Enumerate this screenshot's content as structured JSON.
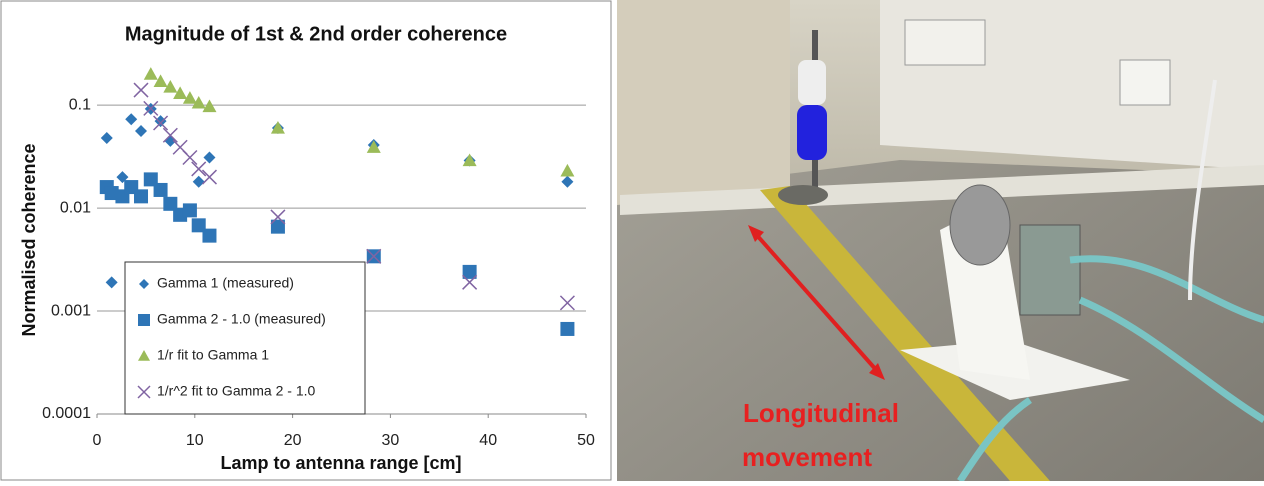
{
  "chart_data": {
    "type": "scatter",
    "title": "Magnitude of 1st & 2nd order coherence",
    "x_label": "Lamp to antenna range [cm]",
    "y_label": "Normalised coherence",
    "xlim": [
      0,
      50
    ],
    "xticks": [
      0,
      10,
      20,
      30,
      40,
      50
    ],
    "ylim": [
      0.0001,
      0.3
    ],
    "yticks": [
      0.0001,
      0.001,
      0.01,
      0.1
    ],
    "y_scale": "log",
    "grid": true,
    "legend": "lower left",
    "series": [
      {
        "name": "Gamma 1 (measured)",
        "color": "#2e75b6",
        "marker": "diamond",
        "x": [
          1.0,
          1.5,
          2.6,
          3.5,
          4.5,
          5.5,
          6.5,
          7.5,
          10.4,
          11.5,
          18.5,
          28.3,
          38.1,
          48.1
        ],
        "values": [
          0.048,
          0.0019,
          0.02,
          0.073,
          0.056,
          0.092,
          0.07,
          0.045,
          0.018,
          0.031,
          0.06,
          0.041,
          0.029,
          0.018
        ]
      },
      {
        "name": "Gamma 2 - 1.0 (measured)",
        "color": "#2e75b6",
        "marker": "square",
        "x": [
          1.0,
          1.5,
          2.6,
          3.5,
          4.5,
          5.5,
          6.5,
          7.5,
          8.5,
          9.5,
          10.4,
          11.5,
          18.5,
          28.3,
          38.1,
          48.1
        ],
        "values": [
          0.016,
          0.014,
          0.013,
          0.016,
          0.013,
          0.019,
          0.015,
          0.011,
          0.0086,
          0.0095,
          0.0068,
          0.0054,
          0.0066,
          0.0034,
          0.0024,
          0.00067
        ]
      },
      {
        "name": "1/r fit to Gamma 1",
        "color": "#9bbb59",
        "marker": "triangle",
        "x": [
          5.5,
          6.5,
          7.5,
          8.5,
          9.5,
          10.4,
          11.5,
          18.5,
          28.3,
          38.1,
          48.1
        ],
        "values": [
          0.2,
          0.17,
          0.15,
          0.13,
          0.117,
          0.105,
          0.097,
          0.06,
          0.039,
          0.029,
          0.023
        ]
      },
      {
        "name": "1/r^2 fit to Gamma 2 - 1.0",
        "color": "#8064a2",
        "marker": "cross",
        "x": [
          4.5,
          5.5,
          6.5,
          7.5,
          8.5,
          9.5,
          10.4,
          11.5,
          18.5,
          28.3,
          38.1,
          48.1
        ],
        "values": [
          0.14,
          0.093,
          0.067,
          0.051,
          0.039,
          0.031,
          0.024,
          0.02,
          0.0082,
          0.0034,
          0.0019,
          0.0012
        ]
      }
    ]
  },
  "photo": {
    "annotation": [
      "Longitudinal",
      "movement"
    ]
  }
}
